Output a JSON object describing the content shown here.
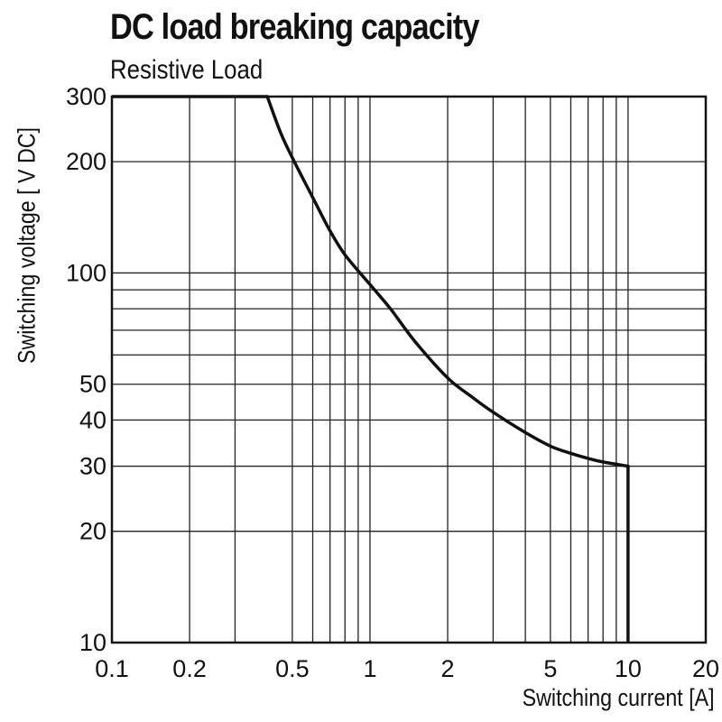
{
  "chart_data": {
    "type": "line",
    "title": "DC load breaking capacity",
    "subtitle": "Resistive Load",
    "xlabel": "Switching current [A]",
    "ylabel": "Switching voltage [ V DC]",
    "x_scale": "log",
    "y_scale": "log",
    "xlim": [
      0.1,
      20
    ],
    "ylim": [
      10,
      300
    ],
    "grid": true,
    "x_ticks": [
      {
        "value": 0.1,
        "label": "0.1"
      },
      {
        "value": 0.2,
        "label": "0.2"
      },
      {
        "value": 0.5,
        "label": "0.5"
      },
      {
        "value": 1,
        "label": "1"
      },
      {
        "value": 2,
        "label": "2"
      },
      {
        "value": 5,
        "label": "5"
      },
      {
        "value": 10,
        "label": "10"
      },
      {
        "value": 20,
        "label": "20"
      }
    ],
    "y_ticks": [
      {
        "value": 10,
        "label": "10"
      },
      {
        "value": 20,
        "label": "20"
      },
      {
        "value": 30,
        "label": "30"
      },
      {
        "value": 40,
        "label": "40"
      },
      {
        "value": 50,
        "label": "50"
      },
      {
        "value": 100,
        "label": "100"
      },
      {
        "value": 200,
        "label": "200"
      },
      {
        "value": 300,
        "label": "300"
      }
    ],
    "x_gridlines": [
      0.2,
      0.3,
      0.5,
      0.6,
      0.7,
      0.8,
      0.9,
      1,
      2,
      3,
      4,
      5,
      6,
      7,
      8,
      9,
      10
    ],
    "y_gridlines": [
      20,
      30,
      40,
      50,
      60,
      70,
      80,
      90,
      100,
      200
    ],
    "series": [
      {
        "x": [
          0.1,
          0.4,
          0.45,
          0.5,
          0.6,
          0.7,
          0.8,
          1,
          1.2,
          1.5,
          2,
          2.5,
          3,
          4,
          5,
          6,
          7,
          8,
          10,
          10
        ],
        "y": [
          300,
          300,
          240,
          205,
          160,
          130,
          112,
          93,
          80,
          65,
          52,
          46,
          42,
          37,
          34,
          32.5,
          31.5,
          30.8,
          30,
          10
        ]
      }
    ]
  }
}
